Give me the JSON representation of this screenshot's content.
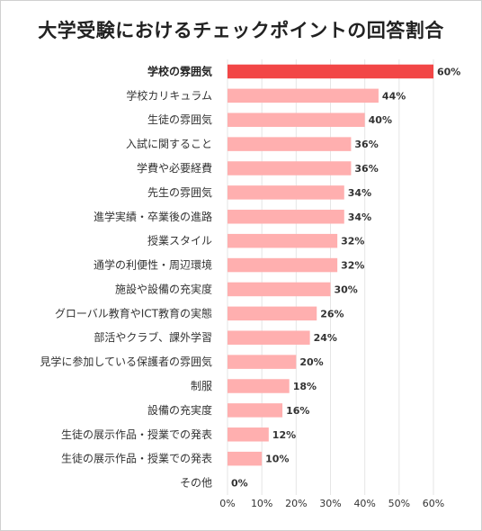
{
  "chart_data": {
    "type": "bar",
    "orientation": "horizontal",
    "title": "大学受験におけるチェックポイントの回答割合",
    "categories": [
      "学校の雰囲気",
      "学校カリキュラム",
      "生徒の雰囲気",
      "入試に関すること",
      "学費や必要経費",
      "先生の雰囲気",
      "進学実績・卒業後の進路",
      "授業スタイル",
      "通学の利便性・周辺環境",
      "施設や設備の充実度",
      "グローバル教育やICT教育の実態",
      "部活やクラブ、課外学習",
      "見学に参加している保護者の雰囲気",
      "制服",
      "設備の充実度",
      "生徒の展示作品・授業での発表",
      "生徒の展示作品・授業での発表",
      "その他"
    ],
    "values": [
      60,
      44,
      40,
      36,
      36,
      34,
      34,
      32,
      32,
      30,
      26,
      24,
      20,
      18,
      16,
      12,
      10,
      0
    ],
    "value_labels": [
      "60%",
      "44%",
      "40%",
      "36%",
      "36%",
      "34%",
      "34%",
      "32%",
      "32%",
      "30%",
      "26%",
      "24%",
      "20%",
      "18%",
      "16%",
      "12%",
      "10%",
      "0%"
    ],
    "xticks": [
      "0%",
      "10%",
      "20%",
      "30%",
      "40%",
      "50%",
      "60%"
    ],
    "xlim": [
      0,
      60
    ],
    "grid": true,
    "colors": {
      "highlight": "#f24646",
      "bar": "#ffafaf",
      "grid": "#e6e6e6"
    },
    "highlight_index": 0
  }
}
